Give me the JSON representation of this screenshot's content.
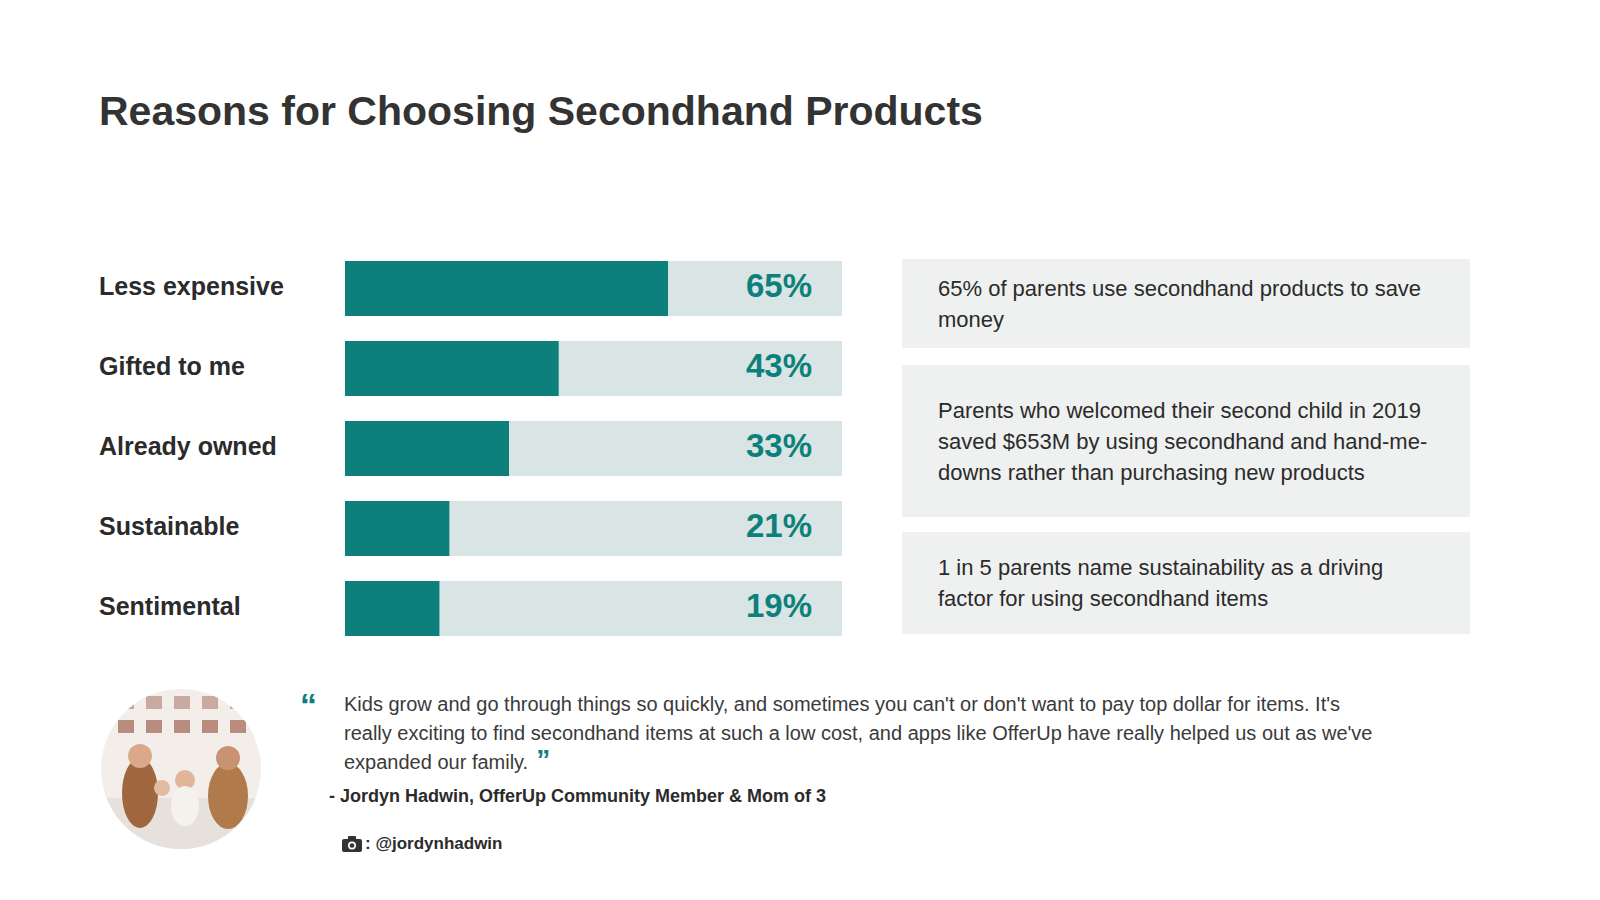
{
  "chart_data": {
    "type": "bar",
    "title": "Reasons for Choosing Secondhand Products",
    "orientation": "horizontal",
    "categories": [
      "Less expensive",
      "Gifted to me",
      "Already owned",
      "Sustainable",
      "Sentimental"
    ],
    "values": [
      65,
      43,
      33,
      21,
      19
    ],
    "value_labels": [
      "65%",
      "43%",
      "33%",
      "21%",
      "19%"
    ],
    "data_labels": true,
    "tick_labels": "y",
    "xlim": [
      0,
      100
    ],
    "color": "#0e807c",
    "annotations": [
      "65% of parents use secondhand products to save money",
      "Parents who welcomed their second child in 2019 saved $653M by using secondhand and hand-me-downs rather than purchasing new products",
      "1 in 5 parents name sustainability as a driving factor for using secondhand items"
    ],
    "quote": {
      "quote_marks": [
        "“",
        "”"
      ],
      "text": "Kids grow and go through things so quickly, and sometimes you can't or don't want to pay top dollar for items. It's really exciting to find secondhand items at such a low cost, and apps like OfferUp have really helped us out as we've expanded our family.",
      "attribution": "- Jordyn Hadwin, OfferUp Community Member & Mom of 3",
      "credit": ": @jordynhadwin"
    }
  }
}
